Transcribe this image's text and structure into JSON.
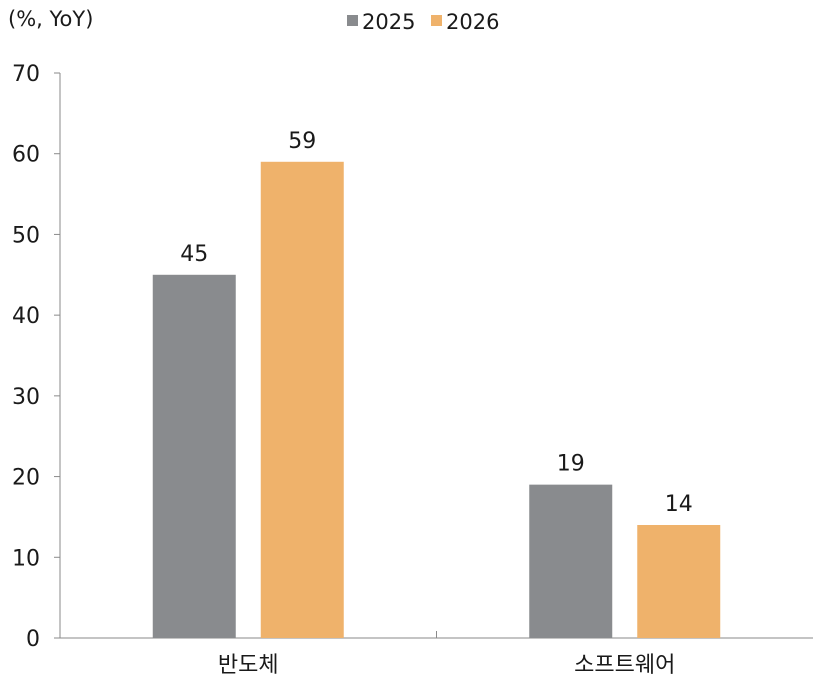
{
  "chart_data": {
    "type": "bar",
    "unit_label": "(%, YoY)",
    "categories": [
      "반도체",
      "소프트웨어"
    ],
    "series": [
      {
        "name": "2025",
        "values": [
          45,
          19
        ],
        "color": "#898b8e"
      },
      {
        "name": "2026",
        "values": [
          59,
          14
        ],
        "color": "#efb26b"
      }
    ],
    "ylim": [
      0,
      70
    ],
    "yticks": [
      0,
      10,
      20,
      30,
      40,
      50,
      60,
      70
    ],
    "legend_position": "top",
    "grid": false,
    "data_labels": true
  }
}
